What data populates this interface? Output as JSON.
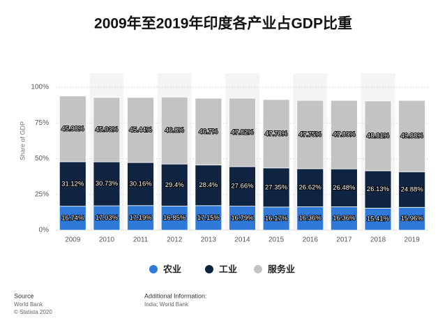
{
  "chart_data": {
    "type": "stacked_bar",
    "title": "2009年至2019年印度各产业占GDP比重",
    "y_label": "Share of GDP",
    "categories": [
      "2009",
      "2010",
      "2011",
      "2012",
      "2013",
      "2014",
      "2015",
      "2016",
      "2017",
      "2018",
      "2019"
    ],
    "series": [
      {
        "name": "农业",
        "color": "#2f7ad8",
        "values": [
          16.74,
          17.03,
          17.19,
          16.85,
          17.15,
          16.79,
          16.17,
          16.36,
          16.36,
          15.41,
          15.96
        ],
        "value_labels": [
          "16.74%",
          "17.03%",
          "17.19%",
          "16.85%",
          "17.15%",
          "16.79%",
          "16.17%",
          "16.36%",
          "16.36%",
          "15.41%",
          "15.96%"
        ]
      },
      {
        "name": "工业",
        "color": "#0e2441",
        "values": [
          31.12,
          30.73,
          30.16,
          29.4,
          28.4,
          27.66,
          27.35,
          26.62,
          26.48,
          26.13,
          24.88
        ],
        "value_labels": [
          "31.12%",
          "30.73%",
          "30.16%",
          "29.4%",
          "28.4%",
          "27.66%",
          "27.35%",
          "26.62%",
          "26.48%",
          "26.13%",
          "24.88%"
        ]
      },
      {
        "name": "服务业",
        "color": "#c3c3c3",
        "values": [
          45.98,
          45.03,
          45.44,
          46.8,
          46.7,
          47.82,
          47.78,
          47.75,
          47.89,
          48.81,
          49.88
        ],
        "value_labels": [
          "45.98%",
          "45.03%",
          "45.44%",
          "46.8%",
          "46.7%",
          "47.82%",
          "47.78%",
          "47.75%",
          "47.89%",
          "48.81%",
          "49.88%"
        ]
      }
    ],
    "ylim": [
      0,
      100
    ],
    "yticks": [
      {
        "value": 0,
        "label": "0%"
      },
      {
        "value": 25,
        "label": "25%"
      },
      {
        "value": 50,
        "label": "50%"
      },
      {
        "value": 75,
        "label": "75%"
      },
      {
        "value": 100,
        "label": "100%"
      }
    ],
    "grid": true,
    "source_label": "Source",
    "source": "World Bank",
    "copyright": "© Statista 2020",
    "additional_info_label": "Additional Information:",
    "additional_info": "India; World Bank"
  }
}
